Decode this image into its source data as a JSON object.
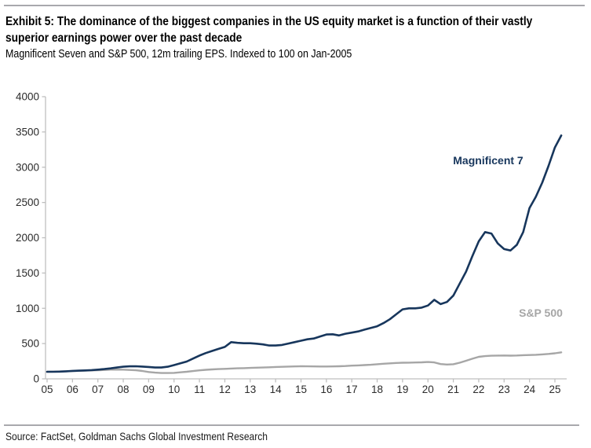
{
  "header": {
    "title_line1": "Exhibit 5: The dominance of the biggest companies in the US equity market is a function of their vastly",
    "title_line2": "superior earnings power over the past decade",
    "subtitle": "Magnificent Seven and S&P 500, 12m trailing EPS. Indexed to 100 on Jan-2005"
  },
  "footer": {
    "source": "Source: FactSet, Goldman Sachs Global Investment Research"
  },
  "chart_data": {
    "type": "line",
    "title": "Magnificent Seven and S&P 500, 12m trailing EPS. Indexed to 100 on Jan-2005",
    "xlabel": "",
    "ylabel": "",
    "ylim": [
      0,
      4000
    ],
    "xlim": [
      2005,
      2025.3
    ],
    "grid": false,
    "y_ticks": [
      0,
      500,
      1000,
      1500,
      2000,
      2500,
      3000,
      3500,
      4000
    ],
    "x_tick_years": [
      2005,
      2006,
      2007,
      2008,
      2009,
      2010,
      2011,
      2012,
      2013,
      2014,
      2015,
      2016,
      2017,
      2018,
      2019,
      2020,
      2021,
      2022,
      2023,
      2024,
      2025
    ],
    "x_tick_labels": [
      "05",
      "06",
      "07",
      "08",
      "09",
      "10",
      "11",
      "12",
      "13",
      "14",
      "15",
      "16",
      "17",
      "18",
      "19",
      "20",
      "21",
      "22",
      "23",
      "24",
      "25"
    ],
    "axis_color": "#bfbfbf",
    "tick_label_color": "#2b2b2b",
    "x": [
      2005.0,
      2005.25,
      2005.5,
      2005.75,
      2006.0,
      2006.25,
      2006.5,
      2006.75,
      2007.0,
      2007.25,
      2007.5,
      2007.75,
      2008.0,
      2008.25,
      2008.5,
      2008.75,
      2009.0,
      2009.25,
      2009.5,
      2009.75,
      2010.0,
      2010.25,
      2010.5,
      2010.75,
      2011.0,
      2011.25,
      2011.5,
      2011.75,
      2012.0,
      2012.25,
      2012.5,
      2012.75,
      2013.0,
      2013.25,
      2013.5,
      2013.75,
      2014.0,
      2014.25,
      2014.5,
      2014.75,
      2015.0,
      2015.25,
      2015.5,
      2015.75,
      2016.0,
      2016.25,
      2016.5,
      2016.75,
      2017.0,
      2017.25,
      2017.5,
      2017.75,
      2018.0,
      2018.25,
      2018.5,
      2018.75,
      2019.0,
      2019.25,
      2019.5,
      2019.75,
      2020.0,
      2020.25,
      2020.5,
      2020.75,
      2021.0,
      2021.25,
      2021.5,
      2021.75,
      2022.0,
      2022.25,
      2022.5,
      2022.75,
      2023.0,
      2023.25,
      2023.5,
      2023.75,
      2024.0,
      2024.25,
      2024.5,
      2024.75,
      2025.0,
      2025.25
    ],
    "series": [
      {
        "name": "Magnificent 7",
        "color": "#17365c",
        "stroke_width": 2.6,
        "values": [
          100,
          100,
          103,
          107,
          112,
          116,
          119,
          124,
          130,
          138,
          148,
          160,
          172,
          177,
          178,
          174,
          168,
          161,
          160,
          172,
          195,
          220,
          245,
          288,
          330,
          365,
          395,
          425,
          452,
          520,
          510,
          505,
          505,
          498,
          488,
          472,
          472,
          480,
          500,
          520,
          540,
          560,
          572,
          600,
          628,
          632,
          615,
          640,
          655,
          672,
          698,
          722,
          745,
          790,
          845,
          915,
          985,
          1000,
          1000,
          1010,
          1040,
          1120,
          1060,
          1090,
          1180,
          1350,
          1520,
          1740,
          1950,
          2080,
          2060,
          1920,
          1840,
          1820,
          1900,
          2080,
          2420,
          2580,
          2780,
          3020,
          3280,
          3450
        ]
      },
      {
        "name": "S&P 500",
        "color": "#a6a6a6",
        "stroke_width": 2.4,
        "values": [
          100,
          102,
          105,
          107,
          110,
          113,
          116,
          119,
          122,
          126,
          130,
          132,
          130,
          126,
          121,
          111,
          97,
          88,
          83,
          82,
          85,
          92,
          100,
          110,
          120,
          128,
          134,
          138,
          142,
          146,
          149,
          152,
          155,
          158,
          161,
          164,
          168,
          171,
          174,
          176,
          178,
          177,
          176,
          175,
          175,
          176,
          178,
          182,
          187,
          191,
          195,
          200,
          207,
          214,
          220,
          225,
          228,
          230,
          232,
          234,
          238,
          233,
          210,
          203,
          207,
          228,
          256,
          285,
          312,
          322,
          328,
          330,
          331,
          329,
          331,
          335,
          338,
          341,
          346,
          353,
          362,
          375
        ]
      }
    ],
    "legend_position": "on-chart annotations"
  }
}
